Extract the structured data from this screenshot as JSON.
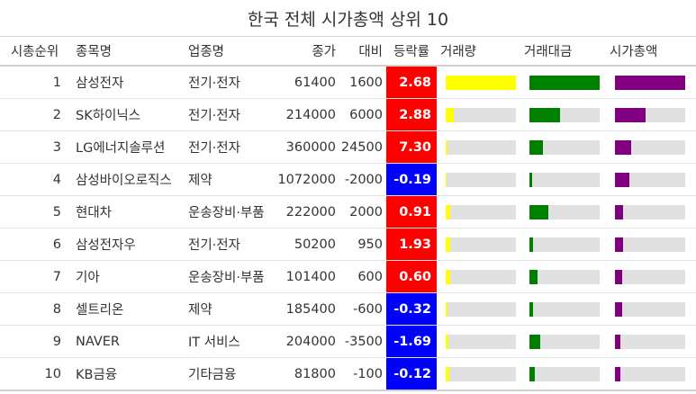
{
  "title": "한국 전체 시가총액 상위 10",
  "headers": {
    "rank": "시총순위",
    "name": "종목명",
    "sector": "업종명",
    "price": "종가",
    "change": "대비",
    "rate": "등락률",
    "volume": "거래량",
    "amount": "거래대금",
    "mktcap": "시가총액"
  },
  "colors": {
    "rise": "#ff0000",
    "fall": "#0000ff",
    "volume_bar": "#ffff00",
    "amount_bar": "#008000",
    "mktcap_bar": "#800080",
    "bar_track": "#e0e0e0"
  },
  "chart_data": {
    "type": "table",
    "title": "한국 전체 시가총액 상위 10",
    "columns": [
      "시총순위",
      "종목명",
      "업종명",
      "종가",
      "대비",
      "등락률",
      "거래량",
      "거래대금",
      "시가총액"
    ],
    "rows": [
      {
        "rank": "1",
        "name": "삼성전자",
        "sector": "전기·전자",
        "price": "61400",
        "change": "1600",
        "rate": "2.68",
        "volume": 1.0,
        "amount": 1.0,
        "mktcap": 1.0
      },
      {
        "rank": "2",
        "name": "SK하이닉스",
        "sector": "전기·전자",
        "price": "214000",
        "change": "6000",
        "rate": "2.88",
        "volume": 0.12,
        "amount": 0.44,
        "mktcap": 0.43
      },
      {
        "rank": "3",
        "name": "LG에너지솔루션",
        "sector": "전기·전자",
        "price": "360000",
        "change": "24500",
        "rate": "7.30",
        "volume": 0.03,
        "amount": 0.19,
        "mktcap": 0.23
      },
      {
        "rank": "4",
        "name": "삼성바이오로직스",
        "sector": "제약",
        "price": "1072000",
        "change": "-2000",
        "rate": "-0.19",
        "volume": 0.01,
        "amount": 0.04,
        "mktcap": 0.21
      },
      {
        "rank": "5",
        "name": "현대차",
        "sector": "운송장비·부품",
        "price": "222000",
        "change": "2000",
        "rate": "0.91",
        "volume": 0.07,
        "amount": 0.27,
        "mktcap": 0.12
      },
      {
        "rank": "6",
        "name": "삼성전자우",
        "sector": "전기·전자",
        "price": "50200",
        "change": "950",
        "rate": "1.93",
        "volume": 0.07,
        "amount": 0.05,
        "mktcap": 0.11
      },
      {
        "rank": "7",
        "name": "기아",
        "sector": "운송장비·부품",
        "price": "101400",
        "change": "600",
        "rate": "0.60",
        "volume": 0.06,
        "amount": 0.11,
        "mktcap": 0.1
      },
      {
        "rank": "8",
        "name": "셀트리온",
        "sector": "제약",
        "price": "185400",
        "change": "-600",
        "rate": "-0.32",
        "volume": 0.02,
        "amount": 0.05,
        "mktcap": 0.1
      },
      {
        "rank": "9",
        "name": "NAVER",
        "sector": "IT 서비스",
        "price": "204000",
        "change": "-3500",
        "rate": "-1.69",
        "volume": 0.04,
        "amount": 0.16,
        "mktcap": 0.08
      },
      {
        "rank": "10",
        "name": "KB금융",
        "sector": "기타금융",
        "price": "81800",
        "change": "-100",
        "rate": "-0.12",
        "volume": 0.05,
        "amount": 0.08,
        "mktcap": 0.08
      }
    ]
  }
}
